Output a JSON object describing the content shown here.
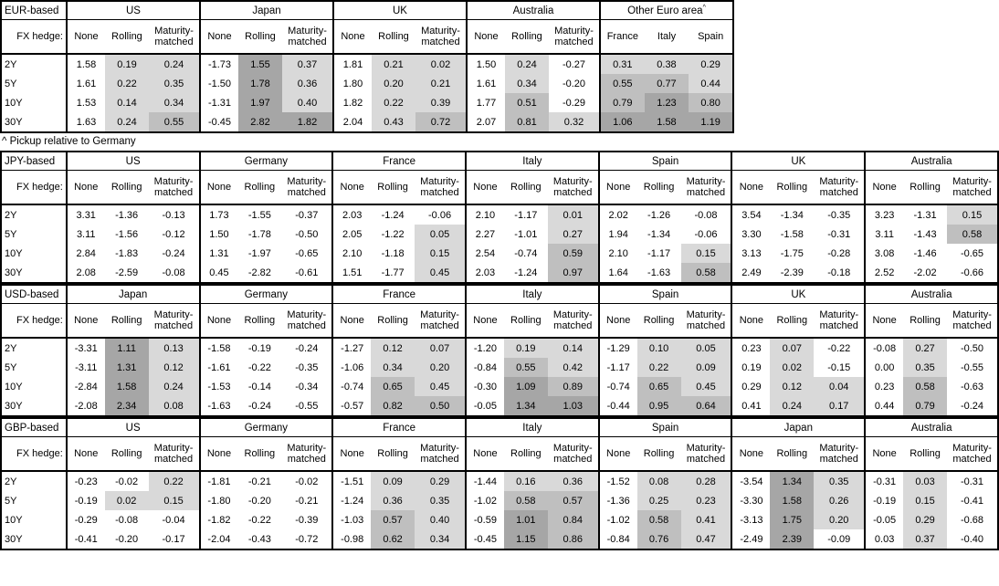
{
  "footnote": "^ Pickup relative to Germany",
  "fx_hedge_label": "FX hedge:",
  "hedge_columns": [
    "None",
    "Rolling",
    "Maturity-matched"
  ],
  "row_labels": [
    "2Y",
    "5Y",
    "10Y",
    "30Y"
  ],
  "colors": {
    "background": "#ffffff",
    "border": "#000000",
    "shade_light": "#d9d9d9",
    "shade_medium": "#bfbfbf",
    "shade_dark": "#a6a6a6"
  },
  "shading": {
    "note": "Hedged pickup cells shaded by value; None columns always unshaded; negative values unshaded",
    "levels": [
      {
        "min": 0.0,
        "color": "#d9d9d9"
      },
      {
        "min": 0.5,
        "color": "#bfbfbf"
      },
      {
        "min": 1.0,
        "color": "#a6a6a6"
      }
    ]
  },
  "tables": [
    {
      "base_label": "EUR-based",
      "groups": [
        {
          "name": "US",
          "rows": [
            [
              "1.58",
              "0.19",
              "0.24"
            ],
            [
              "1.61",
              "0.22",
              "0.35"
            ],
            [
              "1.53",
              "0.14",
              "0.34"
            ],
            [
              "1.63",
              "0.24",
              "0.55"
            ]
          ]
        },
        {
          "name": "Japan",
          "rows": [
            [
              "-1.73",
              "1.55",
              "0.37"
            ],
            [
              "-1.50",
              "1.78",
              "0.36"
            ],
            [
              "-1.31",
              "1.97",
              "0.40"
            ],
            [
              "-0.45",
              "2.82",
              "1.82"
            ]
          ]
        },
        {
          "name": "UK",
          "rows": [
            [
              "1.81",
              "0.21",
              "0.02"
            ],
            [
              "1.80",
              "0.20",
              "0.21"
            ],
            [
              "1.82",
              "0.22",
              "0.39"
            ],
            [
              "2.04",
              "0.43",
              "0.72"
            ]
          ]
        },
        {
          "name": "Australia",
          "rows": [
            [
              "1.50",
              "0.24",
              "-0.27"
            ],
            [
              "1.61",
              "0.34",
              "-0.20"
            ],
            [
              "1.77",
              "0.51",
              "-0.29"
            ],
            [
              "2.07",
              "0.81",
              "0.32"
            ]
          ]
        },
        {
          "name": "Other Euro area",
          "sup": "^",
          "columns": [
            "France",
            "Italy",
            "Spain"
          ],
          "rows": [
            [
              "0.31",
              "0.38",
              "0.29"
            ],
            [
              "0.55",
              "0.77",
              "0.44"
            ],
            [
              "0.79",
              "1.23",
              "0.80"
            ],
            [
              "1.06",
              "1.58",
              "1.19"
            ]
          ]
        }
      ]
    },
    {
      "base_label": "JPY-based",
      "groups": [
        {
          "name": "US",
          "rows": [
            [
              "3.31",
              "-1.36",
              "-0.13"
            ],
            [
              "3.11",
              "-1.56",
              "-0.12"
            ],
            [
              "2.84",
              "-1.83",
              "-0.24"
            ],
            [
              "2.08",
              "-2.59",
              "-0.08"
            ]
          ]
        },
        {
          "name": "Germany",
          "rows": [
            [
              "1.73",
              "-1.55",
              "-0.37"
            ],
            [
              "1.50",
              "-1.78",
              "-0.50"
            ],
            [
              "1.31",
              "-1.97",
              "-0.65"
            ],
            [
              "0.45",
              "-2.82",
              "-0.61"
            ]
          ]
        },
        {
          "name": "France",
          "rows": [
            [
              "2.03",
              "-1.24",
              "-0.06"
            ],
            [
              "2.05",
              "-1.22",
              "0.05"
            ],
            [
              "2.10",
              "-1.18",
              "0.15"
            ],
            [
              "1.51",
              "-1.77",
              "0.45"
            ]
          ]
        },
        {
          "name": "Italy",
          "rows": [
            [
              "2.10",
              "-1.17",
              "0.01"
            ],
            [
              "2.27",
              "-1.01",
              "0.27"
            ],
            [
              "2.54",
              "-0.74",
              "0.59"
            ],
            [
              "2.03",
              "-1.24",
              "0.97"
            ]
          ]
        },
        {
          "name": "Spain",
          "rows": [
            [
              "2.02",
              "-1.26",
              "-0.08"
            ],
            [
              "1.94",
              "-1.34",
              "-0.06"
            ],
            [
              "2.10",
              "-1.17",
              "0.15"
            ],
            [
              "1.64",
              "-1.63",
              "0.58"
            ]
          ]
        },
        {
          "name": "UK",
          "rows": [
            [
              "3.54",
              "-1.34",
              "-0.35"
            ],
            [
              "3.30",
              "-1.58",
              "-0.31"
            ],
            [
              "3.13",
              "-1.75",
              "-0.28"
            ],
            [
              "2.49",
              "-2.39",
              "-0.18"
            ]
          ]
        },
        {
          "name": "Australia",
          "rows": [
            [
              "3.23",
              "-1.31",
              "0.15"
            ],
            [
              "3.11",
              "-1.43",
              "0.58"
            ],
            [
              "3.08",
              "-1.46",
              "-0.65"
            ],
            [
              "2.52",
              "-2.02",
              "-0.66"
            ]
          ]
        }
      ]
    },
    {
      "base_label": "USD-based",
      "groups": [
        {
          "name": "Japan",
          "rows": [
            [
              "-3.31",
              "1.11",
              "0.13"
            ],
            [
              "-3.11",
              "1.31",
              "0.12"
            ],
            [
              "-2.84",
              "1.58",
              "0.24"
            ],
            [
              "-2.08",
              "2.34",
              "0.08"
            ]
          ]
        },
        {
          "name": "Germany",
          "rows": [
            [
              "-1.58",
              "-0.19",
              "-0.24"
            ],
            [
              "-1.61",
              "-0.22",
              "-0.35"
            ],
            [
              "-1.53",
              "-0.14",
              "-0.34"
            ],
            [
              "-1.63",
              "-0.24",
              "-0.55"
            ]
          ]
        },
        {
          "name": "France",
          "rows": [
            [
              "-1.27",
              "0.12",
              "0.07"
            ],
            [
              "-1.06",
              "0.34",
              "0.20"
            ],
            [
              "-0.74",
              "0.65",
              "0.45"
            ],
            [
              "-0.57",
              "0.82",
              "0.50"
            ]
          ]
        },
        {
          "name": "Italy",
          "rows": [
            [
              "-1.20",
              "0.19",
              "0.14"
            ],
            [
              "-0.84",
              "0.55",
              "0.42"
            ],
            [
              "-0.30",
              "1.09",
              "0.89"
            ],
            [
              "-0.05",
              "1.34",
              "1.03"
            ]
          ]
        },
        {
          "name": "Spain",
          "rows": [
            [
              "-1.29",
              "0.10",
              "0.05"
            ],
            [
              "-1.17",
              "0.22",
              "0.09"
            ],
            [
              "-0.74",
              "0.65",
              "0.45"
            ],
            [
              "-0.44",
              "0.95",
              "0.64"
            ]
          ]
        },
        {
          "name": "UK",
          "rows": [
            [
              "0.23",
              "0.07",
              "-0.22"
            ],
            [
              "0.19",
              "0.02",
              "-0.15"
            ],
            [
              "0.29",
              "0.12",
              "0.04"
            ],
            [
              "0.41",
              "0.24",
              "0.17"
            ]
          ]
        },
        {
          "name": "Australia",
          "rows": [
            [
              "-0.08",
              "0.27",
              "-0.50"
            ],
            [
              "0.00",
              "0.35",
              "-0.55"
            ],
            [
              "0.23",
              "0.58",
              "-0.63"
            ],
            [
              "0.44",
              "0.79",
              "-0.24"
            ]
          ]
        }
      ]
    },
    {
      "base_label": "GBP-based",
      "groups": [
        {
          "name": "US",
          "rows": [
            [
              "-0.23",
              "-0.02",
              "0.22"
            ],
            [
              "-0.19",
              "0.02",
              "0.15"
            ],
            [
              "-0.29",
              "-0.08",
              "-0.04"
            ],
            [
              "-0.41",
              "-0.20",
              "-0.17"
            ]
          ]
        },
        {
          "name": "Germany",
          "rows": [
            [
              "-1.81",
              "-0.21",
              "-0.02"
            ],
            [
              "-1.80",
              "-0.20",
              "-0.21"
            ],
            [
              "-1.82",
              "-0.22",
              "-0.39"
            ],
            [
              "-2.04",
              "-0.43",
              "-0.72"
            ]
          ]
        },
        {
          "name": "France",
          "rows": [
            [
              "-1.51",
              "0.09",
              "0.29"
            ],
            [
              "-1.24",
              "0.36",
              "0.35"
            ],
            [
              "-1.03",
              "0.57",
              "0.40"
            ],
            [
              "-0.98",
              "0.62",
              "0.34"
            ]
          ]
        },
        {
          "name": "Italy",
          "rows": [
            [
              "-1.44",
              "0.16",
              "0.36"
            ],
            [
              "-1.02",
              "0.58",
              "0.57"
            ],
            [
              "-0.59",
              "1.01",
              "0.84"
            ],
            [
              "-0.45",
              "1.15",
              "0.86"
            ]
          ]
        },
        {
          "name": "Spain",
          "rows": [
            [
              "-1.52",
              "0.08",
              "0.28"
            ],
            [
              "-1.36",
              "0.25",
              "0.23"
            ],
            [
              "-1.02",
              "0.58",
              "0.41"
            ],
            [
              "-0.84",
              "0.76",
              "0.47"
            ]
          ]
        },
        {
          "name": "Japan",
          "rows": [
            [
              "-3.54",
              "1.34",
              "0.35"
            ],
            [
              "-3.30",
              "1.58",
              "0.26"
            ],
            [
              "-3.13",
              "1.75",
              "0.20"
            ],
            [
              "-2.49",
              "2.39",
              "-0.09"
            ]
          ]
        },
        {
          "name": "Australia",
          "rows": [
            [
              "-0.31",
              "0.03",
              "-0.31"
            ],
            [
              "-0.19",
              "0.15",
              "-0.41"
            ],
            [
              "-0.05",
              "0.29",
              "-0.68"
            ],
            [
              "0.03",
              "0.37",
              "-0.40"
            ]
          ]
        }
      ]
    }
  ]
}
